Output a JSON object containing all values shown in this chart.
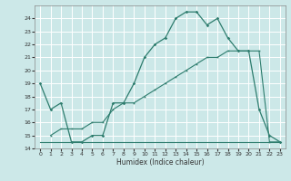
{
  "xlabel": "Humidex (Indice chaleur)",
  "background_color": "#cce8e8",
  "line_color": "#2e7d6e",
  "grid_color": "#ffffff",
  "curve1_x": [
    0,
    1,
    2,
    3,
    4,
    5,
    6,
    7,
    8,
    9,
    10,
    11,
    12,
    13,
    14,
    15,
    16,
    17,
    18,
    19,
    20,
    21,
    22,
    23
  ],
  "curve1_y": [
    19,
    17,
    17.5,
    14.5,
    14.5,
    15,
    15,
    17.5,
    17.5,
    19,
    21,
    22,
    22.5,
    24,
    24.5,
    24.5,
    23.5,
    24,
    22.5,
    21.5,
    21.5,
    17,
    15,
    14.5
  ],
  "curve2_x": [
    0,
    1,
    2,
    3,
    4,
    5,
    6,
    7,
    8,
    9,
    10,
    11,
    12,
    13,
    14,
    23
  ],
  "curve2_y": [
    14.5,
    14.5,
    14.5,
    14.5,
    14.5,
    14.5,
    14.5,
    14.5,
    14.5,
    14.5,
    14.5,
    14.5,
    14.5,
    14.5,
    14.5,
    14.5
  ],
  "curve3_x": [
    1,
    2,
    3,
    4,
    5,
    6,
    7,
    8,
    9,
    10,
    11,
    12,
    13,
    14,
    15,
    16,
    17,
    18,
    19,
    20,
    21,
    22,
    23
  ],
  "curve3_y": [
    15,
    15.5,
    15.5,
    15.5,
    16,
    16,
    17,
    17.5,
    17.5,
    18,
    18.5,
    19,
    19.5,
    20,
    20.5,
    21,
    21,
    21.5,
    21.5,
    21.5,
    21.5,
    14.5,
    14.5
  ],
  "ylim": [
    14,
    25
  ],
  "yticks": [
    14,
    15,
    16,
    17,
    18,
    19,
    20,
    21,
    22,
    23,
    24
  ],
  "xlim": [
    -0.5,
    23.5
  ],
  "xticks": [
    0,
    1,
    2,
    3,
    4,
    5,
    6,
    7,
    8,
    9,
    10,
    11,
    12,
    13,
    14,
    15,
    16,
    17,
    18,
    19,
    20,
    21,
    22,
    23
  ]
}
